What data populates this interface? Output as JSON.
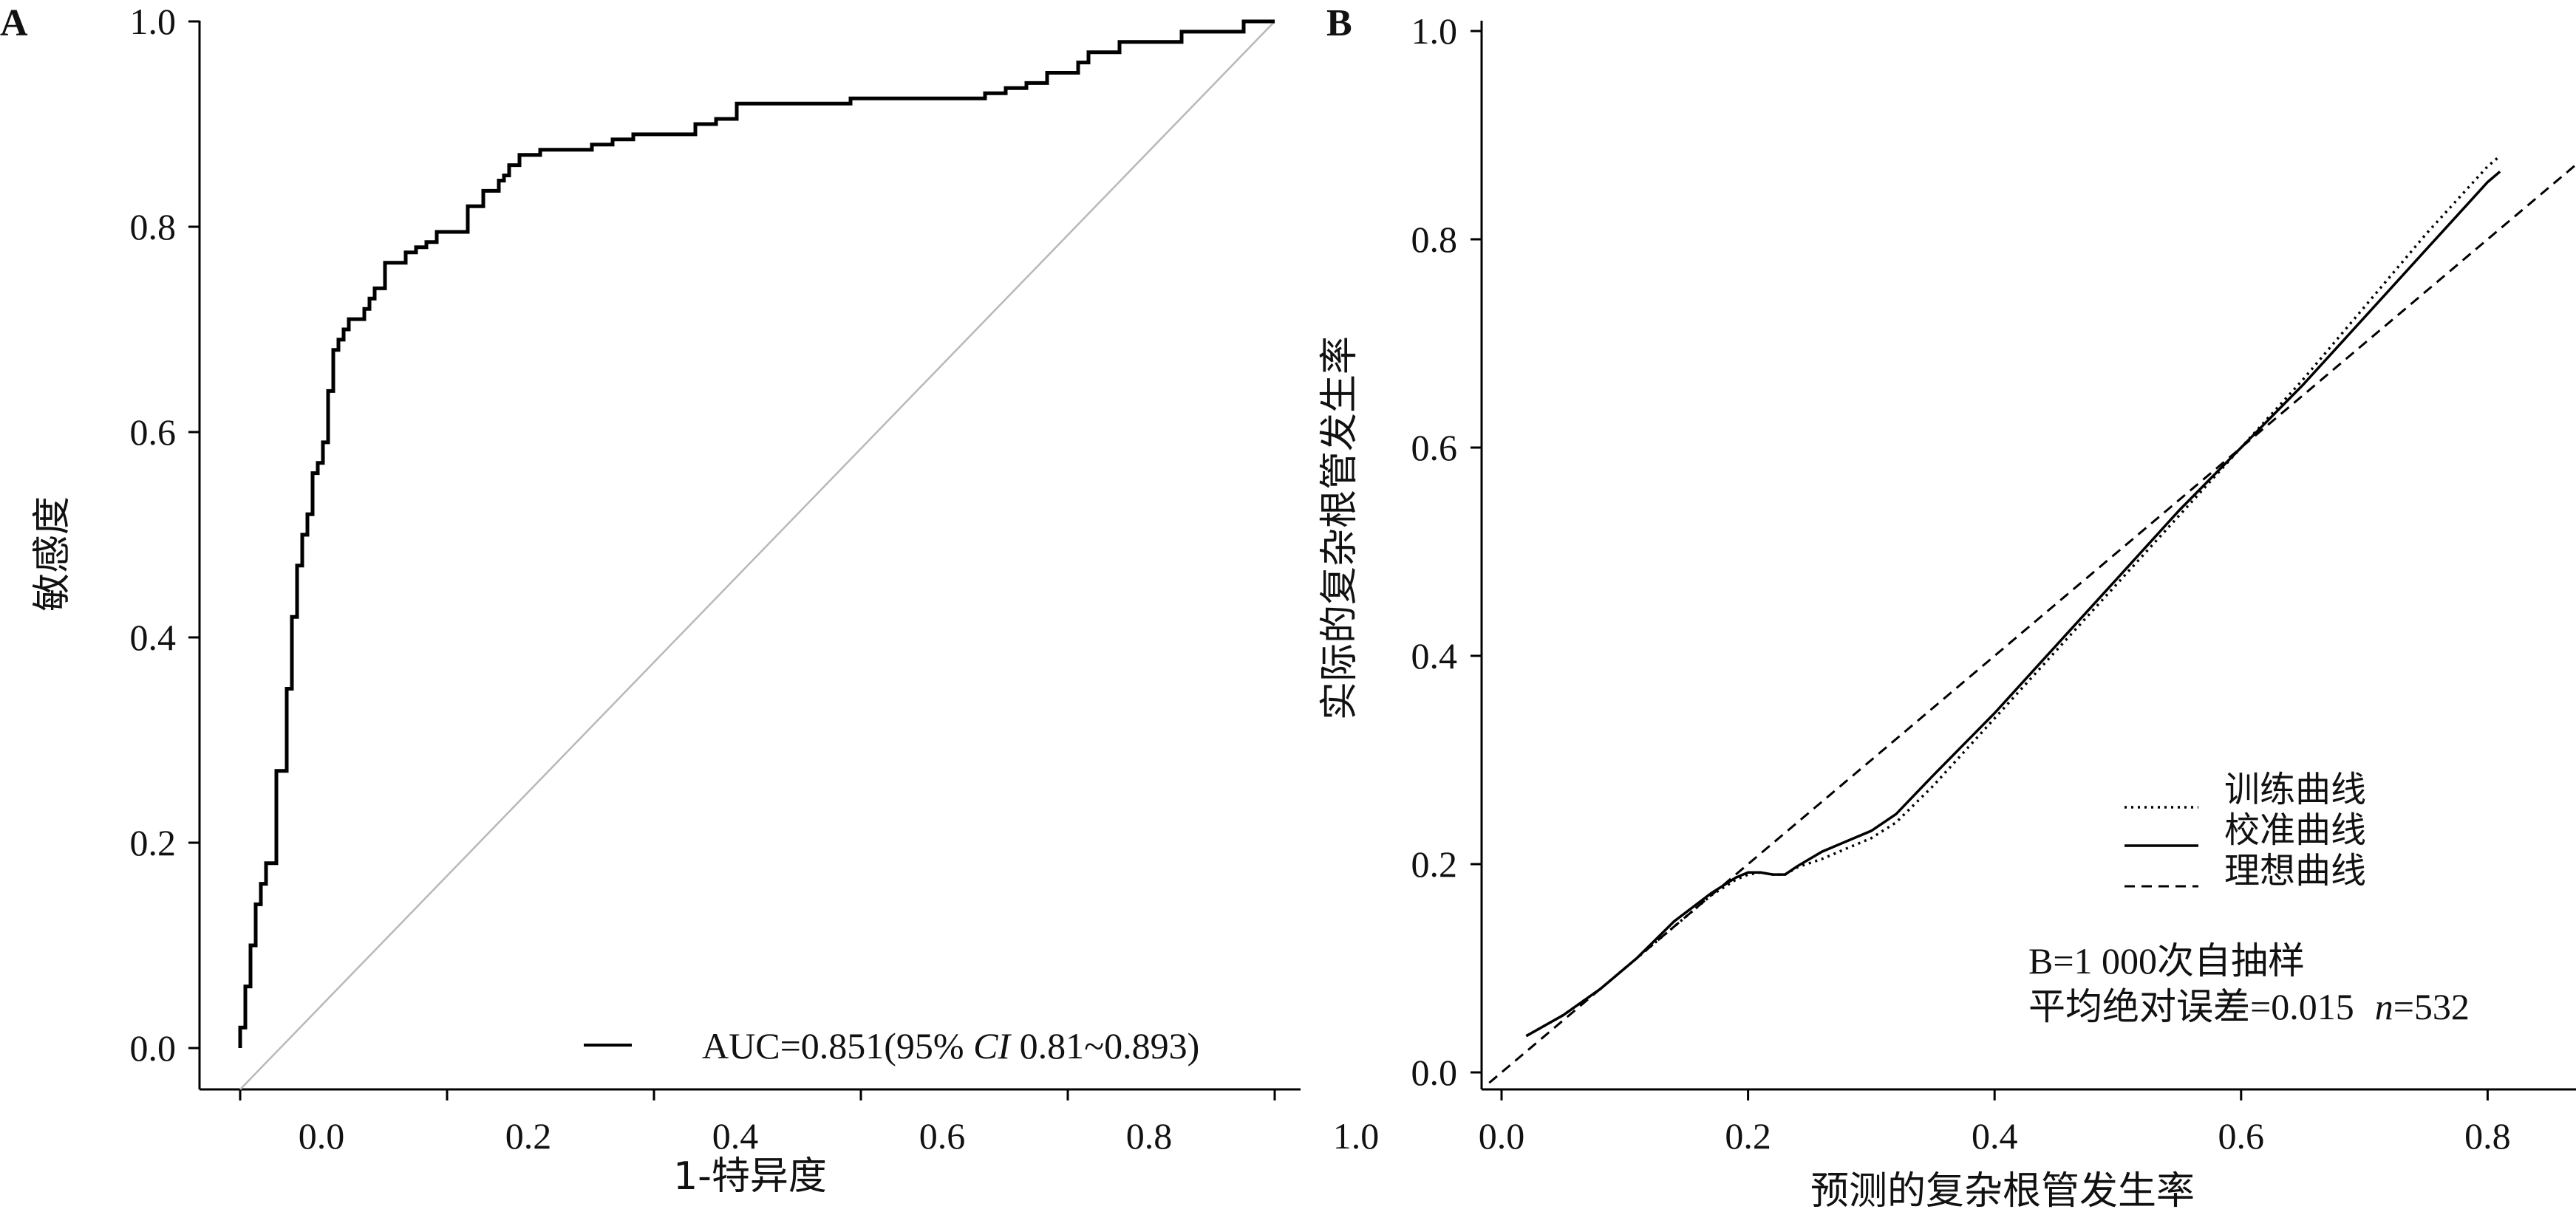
{
  "chart_data": [
    {
      "type": "line",
      "panel_label": "A",
      "xlabel": "1-特异度",
      "ylabel": "敏感度",
      "xlim": [
        -0.04,
        1.04
      ],
      "ylim": [
        -0.04,
        1.0
      ],
      "x_ticks": [
        0.0,
        0.2,
        0.4,
        0.6,
        0.8,
        1.0
      ],
      "x_tick_labels": [
        "0.0",
        "0.2",
        "0.4",
        "0.6",
        "0.8",
        "1.0"
      ],
      "y_ticks": [
        0.0,
        0.2,
        0.4,
        0.6,
        0.8,
        1.0
      ],
      "y_tick_labels": [
        "0.0",
        "0.2",
        "0.4",
        "0.6",
        "0.8",
        "1.0"
      ],
      "grid": false,
      "legend_position": "bottom-right",
      "legend": {
        "prefix": "AUC=0.851(95% ",
        "ci_label": "CI",
        "suffix": " 0.81~0.893)"
      },
      "reference_line": {
        "x": [
          0.0,
          1.0
        ],
        "y": [
          0.0,
          1.0
        ],
        "color": "#b8b8b8"
      },
      "series": [
        {
          "style": "solid",
          "color": "#000000",
          "x": [
            0.0,
            0.0,
            0.005,
            0.005,
            0.01,
            0.01,
            0.015,
            0.015,
            0.02,
            0.02,
            0.025,
            0.025,
            0.035,
            0.035,
            0.045,
            0.045,
            0.05,
            0.05,
            0.055,
            0.055,
            0.06,
            0.06,
            0.065,
            0.065,
            0.07,
            0.07,
            0.075,
            0.075,
            0.08,
            0.08,
            0.085,
            0.085,
            0.09,
            0.09,
            0.095,
            0.095,
            0.1,
            0.1,
            0.105,
            0.105,
            0.11,
            0.11,
            0.12,
            0.12,
            0.125,
            0.125,
            0.13,
            0.13,
            0.14,
            0.14,
            0.16,
            0.16,
            0.17,
            0.17,
            0.18,
            0.18,
            0.19,
            0.19,
            0.2,
            0.2,
            0.22,
            0.22,
            0.235,
            0.235,
            0.25,
            0.25,
            0.255,
            0.255,
            0.26,
            0.26,
            0.27,
            0.27,
            0.28,
            0.28,
            0.29,
            0.29,
            0.3,
            0.3,
            0.32,
            0.32,
            0.34,
            0.34,
            0.36,
            0.36,
            0.38,
            0.38,
            0.41,
            0.41,
            0.44,
            0.44,
            0.46,
            0.46,
            0.48,
            0.48,
            0.53,
            0.53,
            0.59,
            0.59,
            0.72,
            0.72,
            0.74,
            0.74,
            0.76,
            0.76,
            0.78,
            0.78,
            0.81,
            0.81,
            0.82,
            0.82,
            0.85,
            0.85,
            0.91,
            0.91,
            0.97,
            0.97,
            1.0
          ],
          "y": [
            0.0,
            0.02,
            0.02,
            0.06,
            0.06,
            0.1,
            0.1,
            0.14,
            0.14,
            0.16,
            0.16,
            0.18,
            0.18,
            0.27,
            0.27,
            0.35,
            0.35,
            0.42,
            0.42,
            0.47,
            0.47,
            0.5,
            0.5,
            0.52,
            0.52,
            0.56,
            0.56,
            0.57,
            0.57,
            0.59,
            0.59,
            0.64,
            0.64,
            0.68,
            0.68,
            0.69,
            0.69,
            0.7,
            0.7,
            0.71,
            0.71,
            0.71,
            0.71,
            0.72,
            0.72,
            0.73,
            0.73,
            0.74,
            0.74,
            0.765,
            0.765,
            0.775,
            0.775,
            0.78,
            0.78,
            0.785,
            0.785,
            0.795,
            0.795,
            0.795,
            0.795,
            0.82,
            0.82,
            0.835,
            0.835,
            0.845,
            0.845,
            0.85,
            0.85,
            0.86,
            0.86,
            0.87,
            0.87,
            0.87,
            0.87,
            0.875,
            0.875,
            0.875,
            0.875,
            0.875,
            0.875,
            0.88,
            0.88,
            0.885,
            0.885,
            0.89,
            0.89,
            0.89,
            0.89,
            0.9,
            0.9,
            0.905,
            0.905,
            0.92,
            0.92,
            0.92,
            0.92,
            0.925,
            0.925,
            0.93,
            0.93,
            0.935,
            0.935,
            0.94,
            0.94,
            0.95,
            0.95,
            0.96,
            0.96,
            0.97,
            0.97,
            0.98,
            0.98,
            0.99,
            0.99,
            1.0,
            1.0
          ]
        }
      ]
    },
    {
      "type": "line",
      "panel_label": "B",
      "xlabel": "预测的复杂根管发生率",
      "ylabel": "实际的复杂根管发生率",
      "xlim": [
        -0.01,
        0.9
      ],
      "ylim": [
        -0.01,
        1.0
      ],
      "x_ticks": [
        0.0,
        0.2,
        0.4,
        0.6,
        0.8
      ],
      "x_tick_labels": [
        "0.0",
        "0.2",
        "0.4",
        "0.6",
        "0.8"
      ],
      "y_ticks": [
        0.0,
        0.2,
        0.4,
        0.6,
        0.8,
        1.0
      ],
      "y_tick_labels": [
        "0.0",
        "0.2",
        "0.4",
        "0.6",
        "0.8",
        "1.0"
      ],
      "grid": false,
      "legend_position": "center-right",
      "legend": [
        {
          "label": "训练曲线",
          "style": "dotted"
        },
        {
          "label": "校准曲线",
          "style": "solid"
        },
        {
          "label": "理想曲线",
          "style": "dashed"
        }
      ],
      "annotations": [
        "B=1 000次自抽样",
        "平均绝对误差=0.015"
      ],
      "n_label": "n",
      "n_value": "=532",
      "series": [
        {
          "style": "dotted",
          "color": "#000000",
          "x": [
            0.02,
            0.05,
            0.08,
            0.11,
            0.14,
            0.17,
            0.19,
            0.2,
            0.21,
            0.22,
            0.23,
            0.24,
            0.26,
            0.28,
            0.3,
            0.32,
            0.35,
            0.4,
            0.45,
            0.5,
            0.55,
            0.6,
            0.65,
            0.7,
            0.75,
            0.8,
            0.81
          ],
          "y": [
            0.035,
            0.055,
            0.08,
            0.11,
            0.14,
            0.17,
            0.185,
            0.19,
            0.192,
            0.19,
            0.19,
            0.197,
            0.205,
            0.215,
            0.225,
            0.24,
            0.275,
            0.34,
            0.405,
            0.47,
            0.535,
            0.6,
            0.665,
            0.735,
            0.805,
            0.87,
            0.88
          ]
        },
        {
          "style": "solid",
          "color": "#000000",
          "x": [
            0.02,
            0.05,
            0.08,
            0.11,
            0.14,
            0.17,
            0.19,
            0.2,
            0.21,
            0.22,
            0.23,
            0.24,
            0.26,
            0.28,
            0.3,
            0.32,
            0.35,
            0.4,
            0.45,
            0.5,
            0.55,
            0.6,
            0.65,
            0.7,
            0.75,
            0.8,
            0.81
          ],
          "y": [
            0.035,
            0.055,
            0.08,
            0.11,
            0.145,
            0.172,
            0.187,
            0.192,
            0.192,
            0.19,
            0.19,
            0.198,
            0.212,
            0.222,
            0.232,
            0.248,
            0.285,
            0.345,
            0.41,
            0.475,
            0.54,
            0.6,
            0.66,
            0.725,
            0.79,
            0.855,
            0.865
          ]
        },
        {
          "style": "dashed",
          "color": "#000000",
          "x": [
            -0.01,
            0.9
          ],
          "y": [
            -0.01,
            0.9
          ]
        }
      ]
    }
  ]
}
